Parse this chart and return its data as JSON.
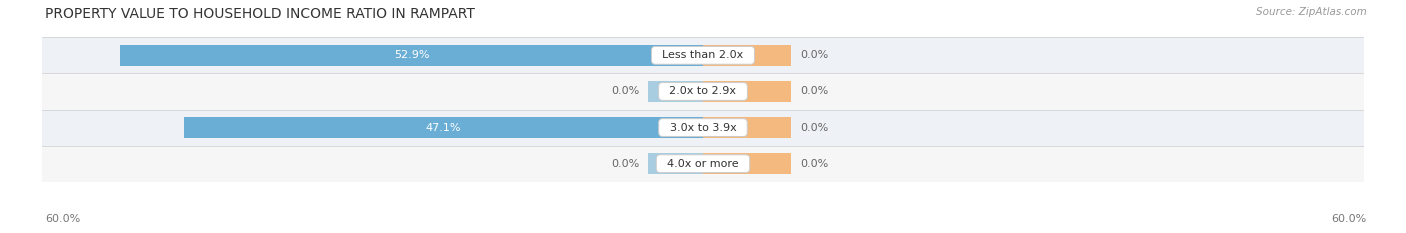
{
  "title": "PROPERTY VALUE TO HOUSEHOLD INCOME RATIO IN RAMPART",
  "source": "Source: ZipAtlas.com",
  "categories": [
    "Less than 2.0x",
    "2.0x to 2.9x",
    "3.0x to 3.9x",
    "4.0x or more"
  ],
  "without_mortgage": [
    52.9,
    0.0,
    47.1,
    0.0
  ],
  "with_mortgage": [
    0.0,
    0.0,
    0.0,
    0.0
  ],
  "max_val": 60.0,
  "color_without": "#6aaed6",
  "color_without_light": "#a8cce0",
  "color_with": "#f4b97f",
  "row_bg_even": "#eef2f6",
  "row_bg_odd": "#f6f6f6",
  "label_color_white": "#ffffff",
  "label_color_dark": "#666666",
  "axis_label": "60.0%",
  "title_fontsize": 10,
  "label_fontsize": 8,
  "cat_fontsize": 8,
  "axis_fontsize": 8,
  "source_fontsize": 7.5,
  "orange_stub_pct": 8.0,
  "blue_stub_pct": 5.0
}
